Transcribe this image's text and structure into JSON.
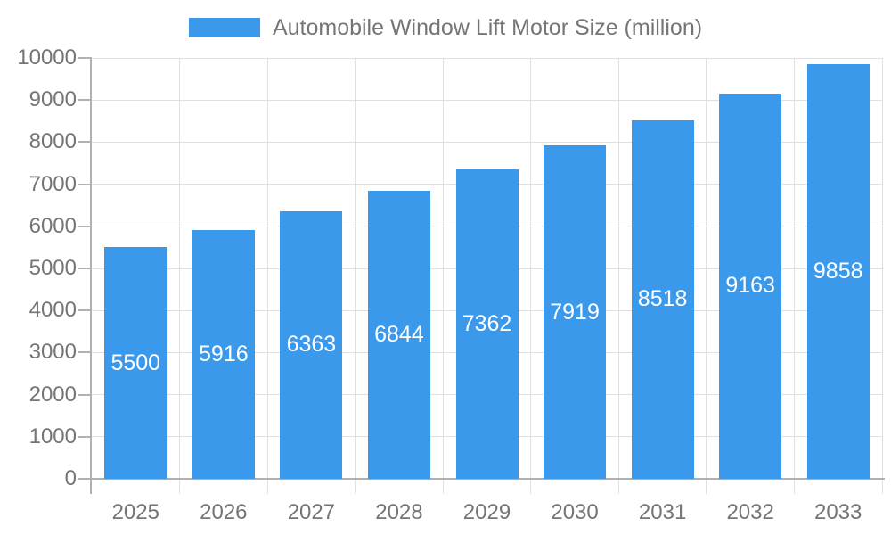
{
  "chart_data": {
    "type": "bar",
    "title": "Automobile Window Lift Motor Size (million)",
    "categories": [
      "2025",
      "2026",
      "2027",
      "2028",
      "2029",
      "2030",
      "2031",
      "2032",
      "2033"
    ],
    "values": [
      5500,
      5916,
      6363,
      6844,
      7362,
      7919,
      8518,
      9163,
      9858
    ],
    "xlabel": "",
    "ylabel": "",
    "ylim": [
      0,
      10000
    ],
    "ytick_step": 1000,
    "grid": true,
    "legend_position": "top-center",
    "value_label_position": "inside-center"
  },
  "legend": {
    "series_label": "Automobile Window Lift Motor Size (million)"
  },
  "colors": {
    "bar": "#3B99EC",
    "grid_line": "#E0E0E0",
    "axis_line": "#B0B0B0",
    "x_tick": "#D9D9D9",
    "label_text": "#757575",
    "value_text": "#FFFFFF",
    "background": "#FFFFFF"
  }
}
